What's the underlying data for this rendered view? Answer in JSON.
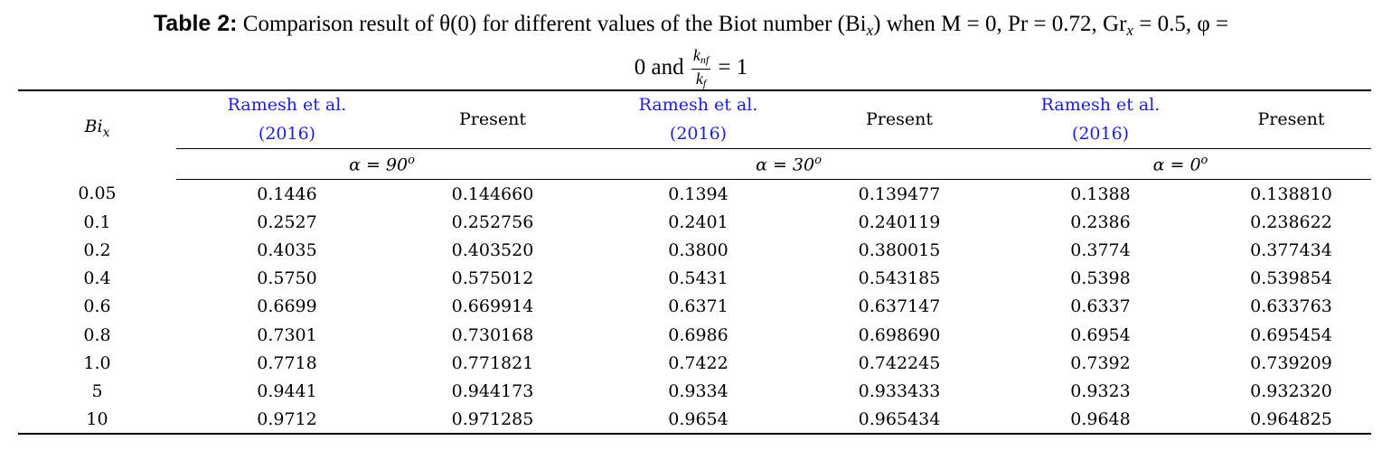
{
  "caption": {
    "label": "Table 2:",
    "text": "Comparison result of θ(0) for different values of the Biot number (Bi",
    "sub_x": "x",
    "text2": ") when M = 0,  Pr = 0.72,  Gr",
    "text3": " = 0.5,  φ =",
    "line2_prefix": "0 and",
    "frac_num": "k",
    "frac_num_sub": "nf",
    "frac_den": "k",
    "frac_den_sub": "f",
    "line2_suffix": "= 1"
  },
  "header": {
    "row_label": "Bi",
    "row_label_sub": "x",
    "ref_line1": "Ramesh et al.",
    "ref_line2": "(2016)",
    "present": "Present",
    "groups": [
      "α = 90",
      "α = 30",
      "α = 0"
    ],
    "degree": "o"
  },
  "rows": [
    [
      "0.05",
      "0.1446",
      "0.144660",
      "0.1394",
      "0.139477",
      "0.1388",
      "0.138810"
    ],
    [
      "0.1",
      "0.2527",
      "0.252756",
      "0.2401",
      "0.240119",
      "0.2386",
      "0.238622"
    ],
    [
      "0.2",
      "0.4035",
      "0.403520",
      "0.3800",
      "0.380015",
      "0.3774",
      "0.377434"
    ],
    [
      "0.4",
      "0.5750",
      "0.575012",
      "0.5431",
      "0.543185",
      "0.5398",
      "0.539854"
    ],
    [
      "0.6",
      "0.6699",
      "0.669914",
      "0.6371",
      "0.637147",
      "0.6337",
      "0.633763"
    ],
    [
      "0.8",
      "0.7301",
      "0.730168",
      "0.6986",
      "0.698690",
      "0.6954",
      "0.695454"
    ],
    [
      "1.0",
      "0.7718",
      "0.771821",
      "0.7422",
      "0.742245",
      "0.7392",
      "0.739209"
    ],
    [
      "5",
      "0.9441",
      "0.944173",
      "0.9334",
      "0.933433",
      "0.9323",
      "0.932320"
    ],
    [
      "10",
      "0.9712",
      "0.971285",
      "0.9654",
      "0.965434",
      "0.9648",
      "0.964825"
    ]
  ],
  "colors": {
    "reference_link": "#1f1fd0"
  }
}
